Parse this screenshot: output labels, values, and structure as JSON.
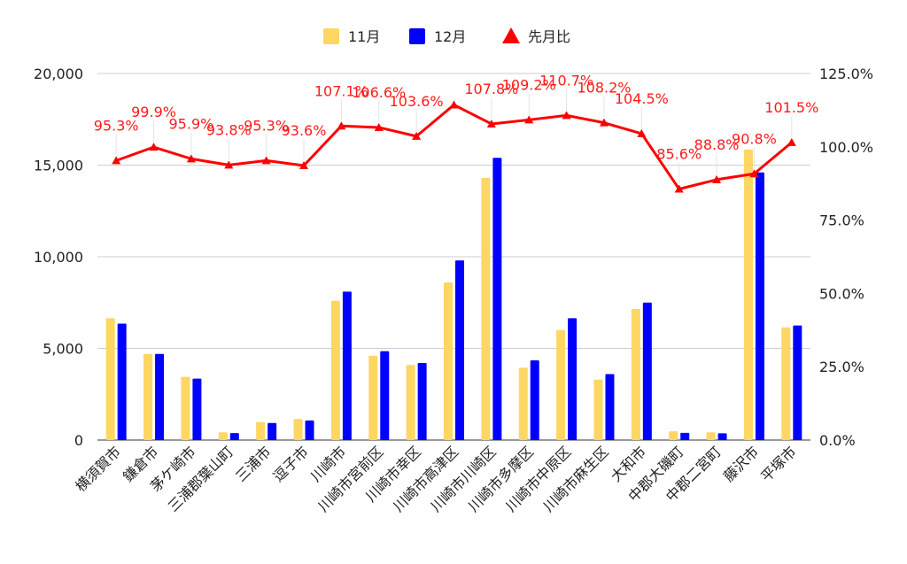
{
  "chart_data": {
    "type": "bar",
    "categories": [
      "横須賀市",
      "鎌倉市",
      "茅ケ崎市",
      "三浦郡葉山町",
      "三浦市",
      "逗子市",
      "川崎市",
      "川崎市宮前区",
      "川崎市幸区",
      "川崎市高津区",
      "川崎市川崎区",
      "川崎市多摩区",
      "川崎市中原区",
      "川崎市麻生区",
      "大和市",
      "中郡大磯町",
      "中郡二宮町",
      "藤沢市",
      "平塚市"
    ],
    "series": [
      {
        "name": "11月",
        "type": "bar",
        "axis": "left",
        "color": "#FDD663",
        "values": [
          6650,
          4700,
          3450,
          420,
          980,
          1150,
          7600,
          4600,
          4100,
          8600,
          14300,
          3950,
          6000,
          3300,
          7150,
          480,
          420,
          15850,
          6150
        ]
      },
      {
        "name": "12月",
        "type": "bar",
        "axis": "left",
        "color": "#0000FF",
        "values": [
          6350,
          4700,
          3350,
          380,
          930,
          1070,
          8100,
          4850,
          4200,
          9800,
          15400,
          4350,
          6650,
          3600,
          7500,
          390,
          370,
          14600,
          6250
        ]
      },
      {
        "name": "先月比",
        "type": "line",
        "axis": "right",
        "color": "#FF0000",
        "values": [
          95.3,
          99.9,
          95.9,
          93.8,
          95.3,
          93.6,
          107.1,
          106.6,
          103.6,
          114.3,
          107.8,
          109.2,
          110.7,
          108.2,
          104.5,
          85.6,
          88.8,
          90.8,
          101.5
        ],
        "labels": [
          "95.3%",
          "99.9%",
          "95.9%",
          "93.8%",
          "95.3%",
          "93.6%",
          "107.1%",
          "106.6%",
          "103.6%",
          "",
          "107.8%",
          "109.2%",
          "110.7%",
          "108.2%",
          "104.5%",
          "85.6%",
          "88.8%",
          "90.8%",
          "101.5%"
        ]
      }
    ],
    "y_left": {
      "min": 0,
      "max": 20000,
      "ticks": [
        "0",
        "5,000",
        "10,000",
        "15,000",
        "20,000"
      ],
      "tick_values": [
        0,
        5000,
        10000,
        15000,
        20000
      ]
    },
    "y_right": {
      "min": 0,
      "max": 125,
      "ticks": [
        "0.0%",
        "25.0%",
        "50.0%",
        "75.0%",
        "100.0%",
        "125.0%"
      ],
      "tick_values": [
        0,
        25,
        50,
        75,
        100,
        125
      ]
    },
    "legend_position": "top",
    "grid": true
  }
}
